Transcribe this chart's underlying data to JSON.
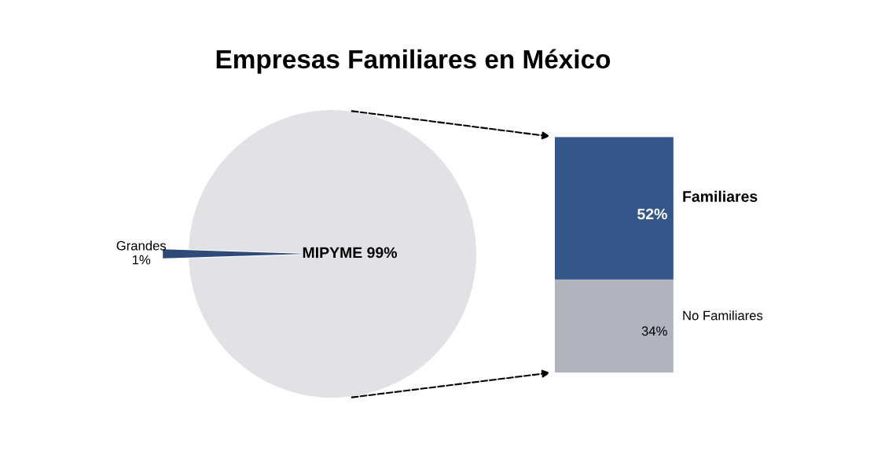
{
  "chart_data": [
    {
      "type": "pie",
      "title": "Empresas Familiares en México",
      "categories": [
        "Grandes",
        "MIPYME"
      ],
      "values": [
        1,
        99
      ],
      "colors": [
        "#2e4a78",
        "#e1e2e6"
      ],
      "value_labels": [
        "1%",
        "99%"
      ]
    },
    {
      "type": "bar",
      "stacked": true,
      "categories": [
        null
      ],
      "series": [
        {
          "name": "No Familiares",
          "color": "#b1b4bf",
          "values": [
            34
          ],
          "value_labels": [
            "34%"
          ]
        },
        {
          "name": "Familiares",
          "color": "#34568a",
          "values": [
            52
          ],
          "value_labels": [
            "52%"
          ]
        }
      ]
    }
  ]
}
